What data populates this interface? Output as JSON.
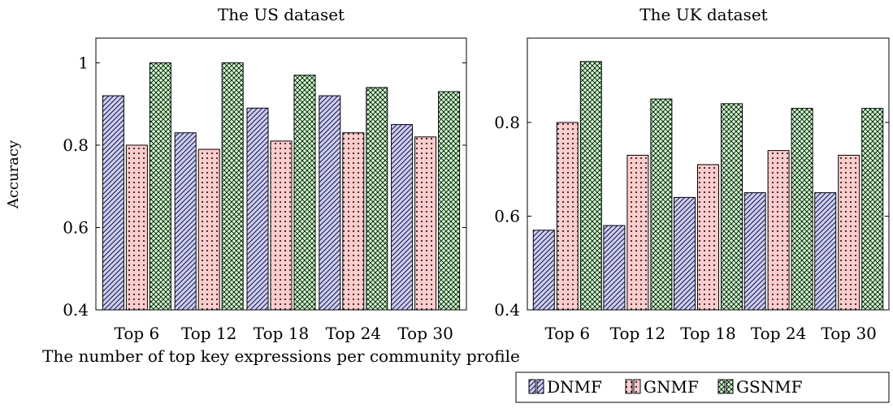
{
  "chart_data": [
    {
      "type": "bar",
      "title": "The US dataset",
      "ylabel": "Accuracy",
      "categories": [
        "Top 6",
        "Top 12",
        "Top 18",
        "Top 24",
        "Top 30"
      ],
      "ylim": [
        0.4,
        1.06
      ],
      "yticks": [
        "0.4",
        "0.6",
        "0.8",
        "1"
      ],
      "grid": false,
      "series": [
        {
          "name": "DNMF",
          "values": [
            0.92,
            0.83,
            0.89,
            0.92,
            0.85
          ]
        },
        {
          "name": "GNMF",
          "values": [
            0.8,
            0.79,
            0.81,
            0.83,
            0.82
          ]
        },
        {
          "name": "GSNMF",
          "values": [
            1.0,
            1.0,
            0.97,
            0.94,
            0.93
          ]
        }
      ]
    },
    {
      "type": "bar",
      "title": "The UK dataset",
      "categories": [
        "Top 6",
        "Top 12",
        "Top 18",
        "Top 24",
        "Top 30"
      ],
      "ylim": [
        0.4,
        0.98
      ],
      "yticks": [
        "0.4",
        "0.6",
        "0.8"
      ],
      "grid": false,
      "series": [
        {
          "name": "DNMF",
          "values": [
            0.57,
            0.58,
            0.64,
            0.65,
            0.65
          ]
        },
        {
          "name": "GNMF",
          "values": [
            0.8,
            0.73,
            0.71,
            0.74,
            0.73
          ]
        },
        {
          "name": "GSNMF",
          "values": [
            0.93,
            0.85,
            0.84,
            0.83,
            0.83
          ]
        }
      ]
    }
  ],
  "shared_xlabel": "The number of top key expressions per community profile",
  "legend": {
    "placement": "bottom-right",
    "entries": [
      "DNMF",
      "GNMF",
      "GSNMF"
    ]
  },
  "colors": {
    "DNMF": "#ccccff",
    "GNMF": "#ffcccc",
    "GSNMF": "#ccffcc"
  }
}
